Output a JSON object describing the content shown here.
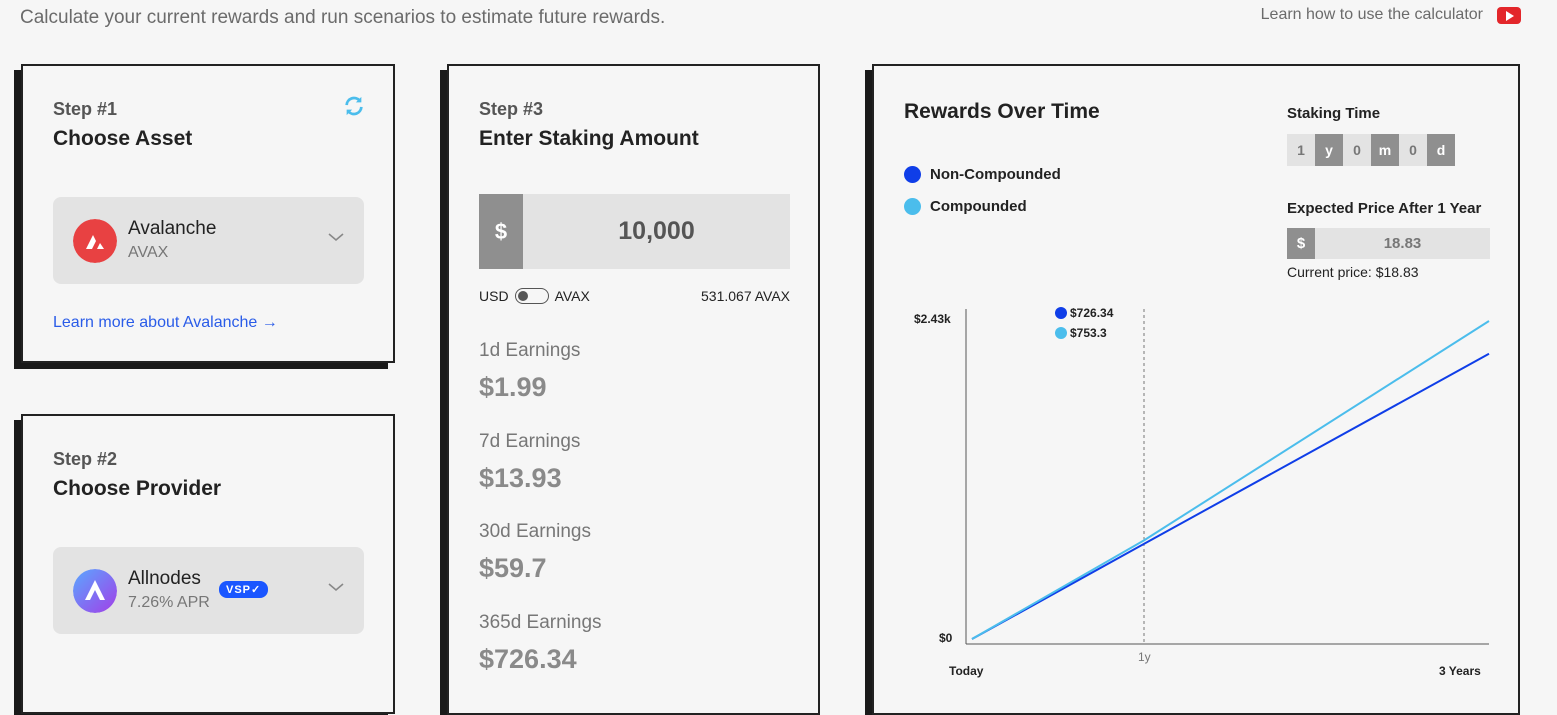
{
  "header": {
    "intro": "Calculate your current rewards and run scenarios to estimate future rewards.",
    "learn_link": "Learn how to use the calculator",
    "video_icon": "youtube-icon"
  },
  "step1": {
    "number": "Step #1",
    "title": "Choose Asset",
    "refresh_icon": "refresh-icon",
    "asset_name": "Avalanche",
    "asset_ticker": "AVAX",
    "asset_color": "#e84142",
    "learn_more": "Learn more about Avalanche →"
  },
  "step2": {
    "number": "Step #2",
    "title": "Choose Provider",
    "provider_name": "Allnodes",
    "provider_apr": "7.26% APR",
    "badge": "VSP✓"
  },
  "step3": {
    "number": "Step #3",
    "title": "Enter Staking Amount",
    "currency_symbol": "$",
    "amount": "10,000",
    "toggle_left": "USD",
    "toggle_right": "AVAX",
    "converted": "531.067 AVAX",
    "earnings": [
      {
        "label": "1d Earnings",
        "value": "$1.99"
      },
      {
        "label": "7d Earnings",
        "value": "$13.93"
      },
      {
        "label": "30d Earnings",
        "value": "$59.7"
      },
      {
        "label": "365d Earnings",
        "value": "$726.34"
      }
    ]
  },
  "rewards": {
    "title": "Rewards Over Time",
    "legend": [
      {
        "label": "Non-Compounded",
        "color": "#0f3ee8"
      },
      {
        "label": "Compounded",
        "color": "#4bbdec"
      }
    ],
    "staking_time_label": "Staking Time",
    "staking_time": [
      {
        "value": "1",
        "unit": "y"
      },
      {
        "value": "0",
        "unit": "m"
      },
      {
        "value": "0",
        "unit": "d"
      }
    ],
    "expected_price_label": "Expected Price After 1 Year",
    "price_symbol": "$",
    "expected_price": "18.83",
    "current_price": "Current price: $18.83"
  },
  "chart_data": {
    "type": "line",
    "x": [
      "Today",
      "1y",
      "3 Years"
    ],
    "x_ticks": {
      "start": "Today",
      "marker": "1y",
      "end": "3 Years"
    },
    "y_ticks": [
      "$2.43k",
      "$0"
    ],
    "ylim": [
      0,
      2430
    ],
    "series": [
      {
        "name": "Non-Compounded",
        "color": "#0f3ee8",
        "values": [
          0,
          726.34,
          2179.02
        ]
      },
      {
        "name": "Compounded",
        "color": "#4bbdec",
        "values": [
          0,
          753.3,
          2430
        ]
      }
    ],
    "tooltip": [
      {
        "value": "$726.34",
        "color": "#0f3ee8"
      },
      {
        "value": "$753.3",
        "color": "#4bbdec"
      }
    ],
    "grid": false
  }
}
